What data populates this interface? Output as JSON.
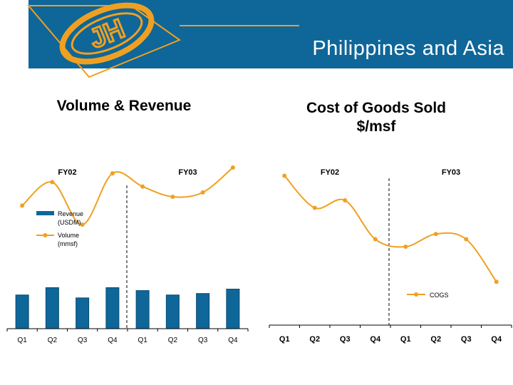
{
  "slide": {
    "title": "Philippines and Asia",
    "header_color": "#0f6699",
    "accent_color": "#f0a020",
    "logo_letters": "JH"
  },
  "chart_data": [
    {
      "type": "bar+line",
      "title": "Volume & Revenue",
      "period_labels": [
        "FY02",
        "FY03"
      ],
      "categories": [
        "Q1",
        "Q2",
        "Q3",
        "Q4",
        "Q1",
        "Q2",
        "Q3",
        "Q4"
      ],
      "series": [
        {
          "name": "Revenue (USDM)",
          "type": "bar",
          "color": "#0f6699",
          "values": [
            23,
            28,
            21,
            28,
            26,
            23,
            24,
            27
          ]
        },
        {
          "name": "Volume (mmsf)",
          "type": "line",
          "color": "#f0a020",
          "values": [
            84,
            100,
            71,
            106,
            97,
            90,
            93,
            110
          ]
        }
      ],
      "legend": [
        "Revenue (USDM)",
        "Volume (mmsf)"
      ],
      "legend_position": "left",
      "divider_after_index": 3,
      "ylim": [
        0,
        200
      ]
    },
    {
      "type": "line",
      "title": "Cost of Goods Sold $/msf",
      "period_labels": [
        "FY02",
        "FY03"
      ],
      "categories": [
        "Q1",
        "Q2",
        "Q3",
        "Q4",
        "Q1",
        "Q2",
        "Q3",
        "Q4"
      ],
      "series": [
        {
          "name": "COGS",
          "color": "#f0a020",
          "values": [
            200,
            157,
            167,
            115,
            105,
            122,
            115,
            58
          ]
        }
      ],
      "legend": [
        "COGS"
      ],
      "legend_position": "bottom-right",
      "divider_after_index": 3,
      "ylim": [
        0,
        210
      ]
    }
  ]
}
